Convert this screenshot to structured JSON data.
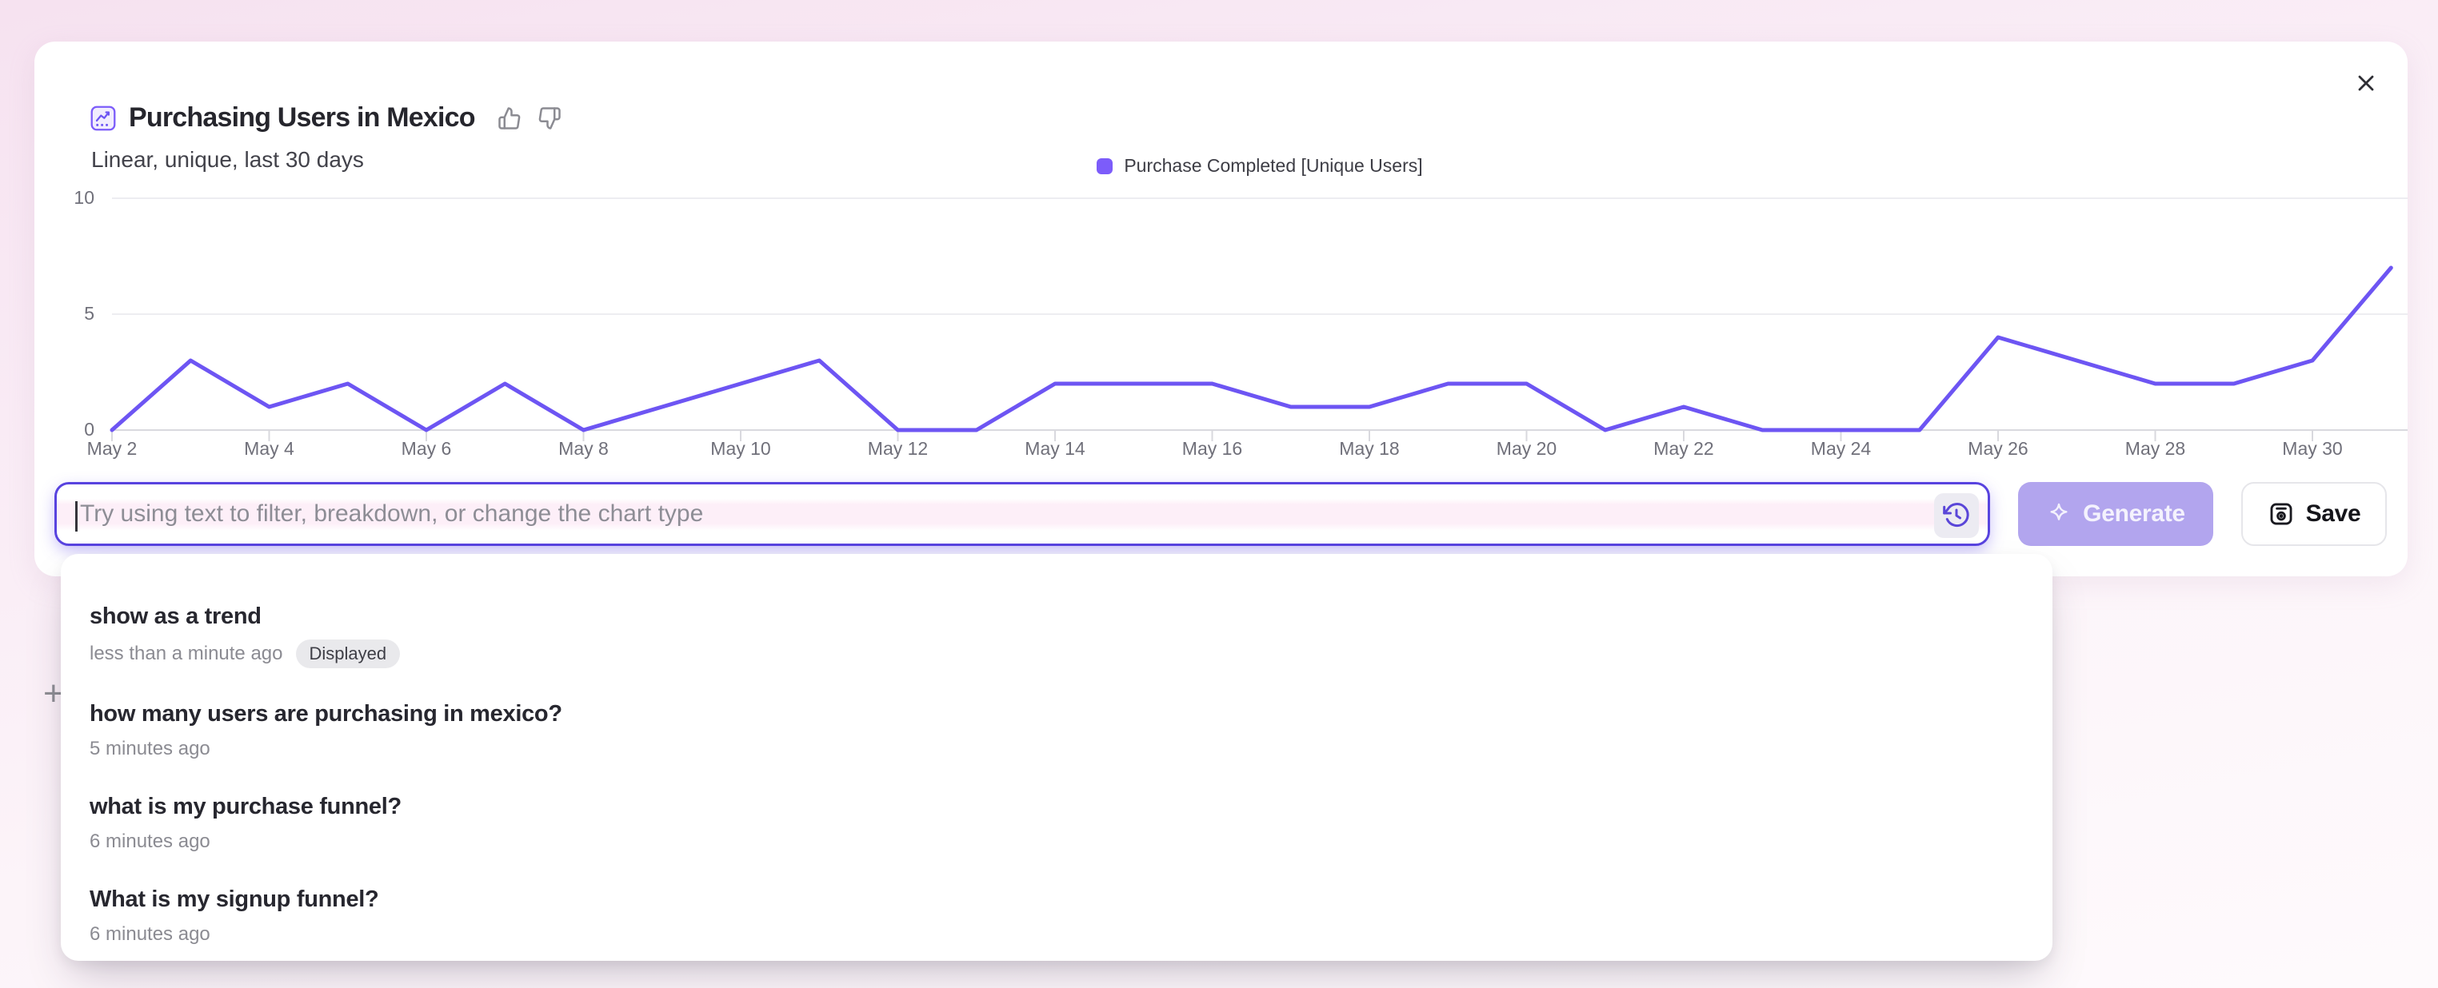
{
  "header": {
    "title": "Purchasing Users in Mexico",
    "subtitle": "Linear, unique, last 30 days",
    "icons": [
      "line-chart-icon",
      "thumbs-up-icon",
      "thumbs-down-icon",
      "close-icon"
    ]
  },
  "legend": {
    "label": "Purchase Completed [Unique Users]",
    "swatch_color": "#7c5cfa"
  },
  "chart_data": {
    "type": "line",
    "title": "Purchasing Users in Mexico",
    "x": [
      "May 2",
      "May 3",
      "May 4",
      "May 5",
      "May 6",
      "May 7",
      "May 8",
      "May 9",
      "May 10",
      "May 11",
      "May 12",
      "May 13",
      "May 14",
      "May 15",
      "May 16",
      "May 17",
      "May 18",
      "May 19",
      "May 20",
      "May 21",
      "May 22",
      "May 23",
      "May 24",
      "May 25",
      "May 26",
      "May 27",
      "May 28",
      "May 29",
      "May 30",
      "May 31"
    ],
    "x_label_every": 2,
    "series": [
      {
        "name": "Purchase Completed [Unique Users]",
        "color": "#6d55f3",
        "values": [
          0,
          3,
          1,
          2,
          0,
          2,
          0,
          1,
          2,
          3,
          0,
          0,
          2,
          2,
          2,
          1,
          1,
          2,
          2,
          0,
          1,
          0,
          0,
          0,
          4,
          3,
          2,
          2,
          3,
          7
        ]
      }
    ],
    "xlabel": "",
    "ylabel": "",
    "ylim": [
      0,
      10
    ],
    "yticks": [
      0,
      5,
      10
    ],
    "grid": true,
    "legend_position": "top-center"
  },
  "input": {
    "placeholder": "Try using text to filter, breakdown, or change the chart type",
    "history_icon": "history-icon"
  },
  "actions": {
    "generate_label": "Generate",
    "save_label": "Save",
    "generate_icon": "sparkle-icon",
    "save_icon": "save-icon"
  },
  "history_dropdown": {
    "items": [
      {
        "query": "show as a trend",
        "time": "less than a minute ago",
        "badge": "Displayed"
      },
      {
        "query": "how many users are purchasing in mexico?",
        "time": "5 minutes ago",
        "badge": ""
      },
      {
        "query": "what is my purchase funnel?",
        "time": "6 minutes ago",
        "badge": ""
      },
      {
        "query": "What is my signup funnel?",
        "time": "6 minutes ago",
        "badge": ""
      }
    ]
  },
  "background_plus": "+",
  "colors": {
    "accent_purple": "#6d55f3",
    "input_border": "#5843df",
    "generate_bg": "#b2a5ee",
    "badge_bg": "#e9e9ec",
    "grid_line": "#ededf1",
    "axis_line": "#d9d9de",
    "page_bg_top": "#f6e2f0",
    "page_bg_bottom": "#fefafc"
  }
}
